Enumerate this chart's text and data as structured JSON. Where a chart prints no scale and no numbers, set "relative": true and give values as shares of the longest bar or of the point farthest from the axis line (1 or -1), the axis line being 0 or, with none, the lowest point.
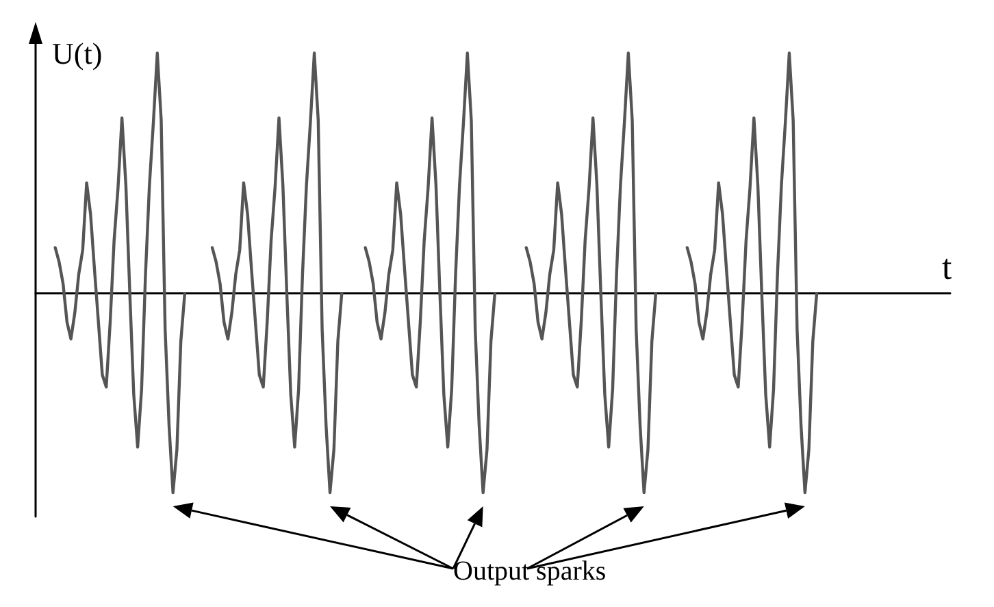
{
  "chart_data": {
    "type": "line",
    "relative": true,
    "xlabel": "t",
    "ylabel": "U(t)",
    "grid": false,
    "line_style": "solid",
    "annotations": [
      "Output sparks"
    ],
    "categories": [
      null,
      null,
      null,
      null,
      null,
      null,
      null,
      null,
      null,
      null,
      null,
      null,
      null,
      null,
      null,
      null,
      null,
      null,
      null,
      null,
      null,
      null,
      null,
      null,
      null,
      null,
      null,
      null,
      null,
      null,
      null,
      null,
      null,
      null,
      null,
      null,
      null,
      null,
      null,
      null,
      null,
      null,
      null,
      null,
      null,
      null,
      null,
      null,
      null,
      null,
      null,
      null,
      null,
      null,
      null,
      null,
      null,
      null,
      null,
      null,
      null,
      null,
      null,
      null,
      null,
      null,
      null,
      null,
      null,
      null,
      null,
      null,
      null,
      null,
      null,
      null,
      null,
      null,
      null,
      null,
      null,
      null,
      null,
      null,
      null,
      null,
      null,
      null,
      null,
      null,
      null,
      null,
      null,
      null,
      null,
      null,
      null,
      null,
      null,
      null,
      null,
      null,
      null,
      null,
      null,
      null,
      null,
      null,
      null,
      null,
      null,
      null,
      null,
      null,
      null,
      null,
      null,
      null,
      null,
      null,
      null,
      null,
      null,
      null,
      null,
      null,
      null,
      null,
      null,
      null,
      null,
      null,
      null,
      null,
      null,
      null,
      null,
      null,
      null,
      null,
      null,
      null,
      null,
      null,
      null,
      null,
      null,
      null,
      null,
      null,
      null,
      null,
      null,
      null,
      null,
      null,
      null,
      null,
      null,
      null,
      null,
      null,
      null,
      null,
      null,
      null,
      null,
      null,
      null,
      null,
      null,
      null,
      null,
      null,
      null,
      null,
      null,
      null,
      null,
      null,
      null,
      null,
      null,
      null,
      null,
      null,
      null,
      null,
      null,
      null,
      null,
      null,
      null,
      null,
      null,
      null,
      null,
      null,
      null,
      null,
      null,
      null,
      null,
      null,
      null,
      null,
      null,
      null,
      null,
      null,
      null,
      null,
      null,
      null,
      null,
      null,
      null,
      null,
      null,
      null,
      null,
      null,
      null,
      null,
      null,
      null,
      null,
      null,
      null,
      null,
      null,
      null,
      null,
      null
    ],
    "series": [
      {
        "color": "#555555",
        "values": [
          null,
          null,
          null,
          null,
          null,
          0.19,
          0.13,
          0.04,
          -0.12,
          -0.19,
          -0.08,
          0.08,
          0.18,
          0.46,
          0.33,
          0.1,
          -0.12,
          -0.34,
          -0.39,
          -0.12,
          0.22,
          0.44,
          0.73,
          0.45,
          0,
          -0.42,
          -0.64,
          -0.4,
          0.08,
          0.45,
          0.71,
          1,
          0.72,
          -0.15,
          -0.55,
          -0.83,
          -0.65,
          -0.2,
          0,
          null,
          null,
          null,
          null,
          null,
          null,
          null,
          null,
          null,
          null,
          null,
          null,
          null,
          null,
          null,
          null,
          null,
          null,
          null,
          null,
          null,
          null,
          null,
          null,
          null,
          null,
          null,
          null,
          null,
          null,
          null,
          null,
          null,
          null,
          null,
          null,
          null,
          null,
          null,
          null,
          null,
          null,
          null,
          null,
          null,
          null,
          null,
          null,
          null,
          null,
          null,
          null,
          null,
          null,
          null,
          null,
          null,
          null,
          null,
          null,
          null,
          null,
          null,
          null,
          null,
          null,
          null,
          null,
          null,
          null,
          null,
          null,
          null,
          null,
          null,
          null,
          null,
          null,
          null,
          null,
          null,
          null,
          null,
          null,
          null,
          null,
          null,
          null,
          null,
          null,
          null,
          null,
          null,
          null,
          null,
          null,
          null,
          null,
          null,
          null,
          null,
          null,
          null,
          null,
          null,
          null,
          null,
          null,
          null,
          null,
          null,
          null,
          null,
          null,
          null,
          null,
          null,
          null,
          null,
          null,
          null,
          null,
          null,
          null,
          null,
          null,
          null,
          null,
          null,
          null,
          null,
          null,
          null,
          null,
          null,
          null,
          null,
          null,
          null,
          null,
          null,
          null,
          null,
          null,
          null,
          null,
          null,
          null,
          null,
          null,
          null,
          null,
          null,
          null,
          null,
          null,
          null,
          null,
          null,
          null,
          null,
          null,
          null,
          null,
          null,
          null,
          null,
          null,
          null,
          null,
          null,
          null,
          null,
          null,
          null,
          null,
          null,
          null,
          null,
          null,
          null,
          null,
          null,
          null,
          null,
          null,
          null,
          null,
          null,
          null,
          null,
          null,
          null,
          null,
          null
        ]
      },
      {
        "color": "#555555",
        "values": [
          null,
          null,
          null,
          null,
          null,
          null,
          null,
          null,
          null,
          null,
          null,
          null,
          null,
          null,
          null,
          null,
          null,
          null,
          null,
          null,
          null,
          null,
          null,
          null,
          null,
          null,
          null,
          null,
          null,
          null,
          null,
          null,
          null,
          null,
          null,
          null,
          null,
          null,
          null,
          null,
          null,
          null,
          null,
          null,
          null,
          0.19,
          0.13,
          0.04,
          -0.12,
          -0.19,
          -0.08,
          0.08,
          0.18,
          0.46,
          0.33,
          0.1,
          -0.12,
          -0.34,
          -0.39,
          -0.12,
          0.22,
          0.44,
          0.73,
          0.45,
          0,
          -0.42,
          -0.64,
          -0.4,
          0.08,
          0.45,
          0.71,
          1,
          0.72,
          -0.15,
          -0.55,
          -0.83,
          -0.65,
          -0.2,
          0,
          null,
          null,
          null,
          null,
          null,
          null,
          null,
          null,
          null,
          null,
          null,
          null,
          null,
          null,
          null,
          null,
          null,
          null,
          null,
          null,
          null,
          null,
          null,
          null,
          null,
          null,
          null,
          null,
          null,
          null,
          null,
          null,
          null,
          null,
          null,
          null,
          null,
          null,
          null,
          null,
          null,
          null,
          null,
          null,
          null,
          null,
          null,
          null,
          null,
          null,
          null,
          null,
          null,
          null,
          null,
          null,
          null,
          null,
          null,
          null,
          null,
          null,
          null,
          null,
          null,
          null,
          null,
          null,
          null,
          null,
          null,
          null,
          null,
          null,
          null,
          null,
          null,
          null,
          null,
          null,
          null,
          null,
          null,
          null,
          null,
          null,
          null,
          null,
          null,
          null,
          null,
          null,
          null,
          null,
          null,
          null,
          null,
          null,
          null,
          null,
          null,
          null,
          null,
          null,
          null,
          null,
          null,
          null,
          null,
          null,
          null,
          null,
          null,
          null,
          null,
          null,
          null,
          null,
          null,
          null,
          null,
          null,
          null,
          null,
          null,
          null,
          null,
          null,
          null,
          null,
          null,
          null,
          null,
          null,
          null,
          null,
          null,
          null,
          null,
          null,
          null,
          null,
          null,
          null,
          null,
          null,
          null,
          null,
          null,
          null,
          null,
          null,
          null,
          null,
          null
        ]
      },
      {
        "color": "#555555",
        "values": [
          null,
          null,
          null,
          null,
          null,
          null,
          null,
          null,
          null,
          null,
          null,
          null,
          null,
          null,
          null,
          null,
          null,
          null,
          null,
          null,
          null,
          null,
          null,
          null,
          null,
          null,
          null,
          null,
          null,
          null,
          null,
          null,
          null,
          null,
          null,
          null,
          null,
          null,
          null,
          null,
          null,
          null,
          null,
          null,
          null,
          null,
          null,
          null,
          null,
          null,
          null,
          null,
          null,
          null,
          null,
          null,
          null,
          null,
          null,
          null,
          null,
          null,
          null,
          null,
          null,
          null,
          null,
          null,
          null,
          null,
          null,
          null,
          null,
          null,
          null,
          null,
          null,
          null,
          null,
          null,
          null,
          null,
          null,
          null,
          0.19,
          0.13,
          0.04,
          -0.12,
          -0.19,
          -0.08,
          0.08,
          0.18,
          0.46,
          0.33,
          0.1,
          -0.12,
          -0.34,
          -0.39,
          -0.12,
          0.22,
          0.44,
          0.73,
          0.45,
          0,
          -0.42,
          -0.64,
          -0.4,
          0.08,
          0.45,
          0.71,
          1,
          0.72,
          -0.15,
          -0.55,
          -0.83,
          -0.65,
          -0.2,
          0,
          null,
          null,
          null,
          null,
          null,
          null,
          null,
          null,
          null,
          null,
          null,
          null,
          null,
          null,
          null,
          null,
          null,
          null,
          null,
          null,
          null,
          null,
          null,
          null,
          null,
          null,
          null,
          null,
          null,
          null,
          null,
          null,
          null,
          null,
          null,
          null,
          null,
          null,
          null,
          null,
          null,
          null,
          null,
          null,
          null,
          null,
          null,
          null,
          null,
          null,
          null,
          null,
          null,
          null,
          null,
          null,
          null,
          null,
          null,
          null,
          null,
          null,
          null,
          null,
          null,
          null,
          null,
          null,
          null,
          null,
          null,
          null,
          null,
          null,
          null,
          null,
          null,
          null,
          null,
          null,
          null,
          null,
          null,
          null,
          null,
          null,
          null,
          null,
          null,
          null,
          null,
          null,
          null,
          null,
          null,
          null,
          null,
          null,
          null,
          null,
          null,
          null,
          null,
          null,
          null,
          null,
          null,
          null,
          null,
          null,
          null,
          null,
          null,
          null,
          null,
          null
        ]
      },
      {
        "color": "#555555",
        "values": [
          null,
          null,
          null,
          null,
          null,
          null,
          null,
          null,
          null,
          null,
          null,
          null,
          null,
          null,
          null,
          null,
          null,
          null,
          null,
          null,
          null,
          null,
          null,
          null,
          null,
          null,
          null,
          null,
          null,
          null,
          null,
          null,
          null,
          null,
          null,
          null,
          null,
          null,
          null,
          null,
          null,
          null,
          null,
          null,
          null,
          null,
          null,
          null,
          null,
          null,
          null,
          null,
          null,
          null,
          null,
          null,
          null,
          null,
          null,
          null,
          null,
          null,
          null,
          null,
          null,
          null,
          null,
          null,
          null,
          null,
          null,
          null,
          null,
          null,
          null,
          null,
          null,
          null,
          null,
          null,
          null,
          null,
          null,
          null,
          null,
          null,
          null,
          null,
          null,
          null,
          null,
          null,
          null,
          null,
          null,
          null,
          null,
          null,
          null,
          null,
          null,
          null,
          null,
          null,
          null,
          null,
          null,
          null,
          null,
          null,
          null,
          null,
          null,
          null,
          null,
          null,
          null,
          null,
          null,
          null,
          null,
          null,
          null,
          null,
          null,
          0.19,
          0.13,
          0.04,
          -0.12,
          -0.19,
          -0.08,
          0.08,
          0.18,
          0.46,
          0.33,
          0.1,
          -0.12,
          -0.34,
          -0.39,
          -0.12,
          0.22,
          0.44,
          0.73,
          0.45,
          0,
          -0.42,
          -0.64,
          -0.4,
          0.08,
          0.45,
          0.71,
          1,
          0.72,
          -0.15,
          -0.55,
          -0.83,
          -0.65,
          -0.2,
          0,
          null,
          null,
          null,
          null,
          null,
          null,
          null,
          null,
          null,
          null,
          null,
          null,
          null,
          null,
          null,
          null,
          null,
          null,
          null,
          null,
          null,
          null,
          null,
          null,
          null,
          null,
          null,
          null,
          null,
          null,
          null,
          null,
          null,
          null,
          null,
          null,
          null,
          null,
          null,
          null,
          null,
          null,
          null,
          null,
          null,
          null,
          null,
          null,
          null,
          null,
          null,
          null,
          null,
          null,
          null,
          null,
          null,
          null,
          null,
          null,
          null,
          null,
          null,
          null,
          null,
          null,
          null,
          null,
          null,
          null,
          null,
          null,
          null,
          null,
          null
        ]
      },
      {
        "color": "#555555",
        "values": [
          null,
          null,
          null,
          null,
          null,
          null,
          null,
          null,
          null,
          null,
          null,
          null,
          null,
          null,
          null,
          null,
          null,
          null,
          null,
          null,
          null,
          null,
          null,
          null,
          null,
          null,
          null,
          null,
          null,
          null,
          null,
          null,
          null,
          null,
          null,
          null,
          null,
          null,
          null,
          null,
          null,
          null,
          null,
          null,
          null,
          null,
          null,
          null,
          null,
          null,
          null,
          null,
          null,
          null,
          null,
          null,
          null,
          null,
          null,
          null,
          null,
          null,
          null,
          null,
          null,
          null,
          null,
          null,
          null,
          null,
          null,
          null,
          null,
          null,
          null,
          null,
          null,
          null,
          null,
          null,
          null,
          null,
          null,
          null,
          null,
          null,
          null,
          null,
          null,
          null,
          null,
          null,
          null,
          null,
          null,
          null,
          null,
          null,
          null,
          null,
          null,
          null,
          null,
          null,
          null,
          null,
          null,
          null,
          null,
          null,
          null,
          null,
          null,
          null,
          null,
          null,
          null,
          null,
          null,
          null,
          null,
          null,
          null,
          null,
          null,
          null,
          null,
          null,
          null,
          null,
          null,
          null,
          null,
          null,
          null,
          null,
          null,
          null,
          null,
          null,
          null,
          null,
          null,
          null,
          null,
          null,
          null,
          null,
          null,
          null,
          null,
          null,
          null,
          null,
          null,
          null,
          null,
          null,
          null,
          null,
          null,
          null,
          null,
          null,
          null,
          null,
          0.19,
          0.13,
          0.04,
          -0.12,
          -0.19,
          -0.08,
          0.08,
          0.18,
          0.46,
          0.33,
          0.1,
          -0.12,
          -0.34,
          -0.39,
          -0.12,
          0.22,
          0.44,
          0.73,
          0.45,
          0,
          -0.42,
          -0.64,
          -0.4,
          0.08,
          0.45,
          0.71,
          1,
          0.72,
          -0.15,
          -0.55,
          -0.83,
          -0.65,
          -0.2,
          0,
          null,
          null,
          null,
          null,
          null,
          null,
          null,
          null,
          null,
          null,
          null,
          null,
          null,
          null,
          null,
          null,
          null,
          null,
          null,
          null,
          null,
          null,
          null,
          null,
          null,
          null,
          null,
          null,
          null,
          null,
          null,
          null,
          null,
          null
        ]
      }
    ]
  }
}
